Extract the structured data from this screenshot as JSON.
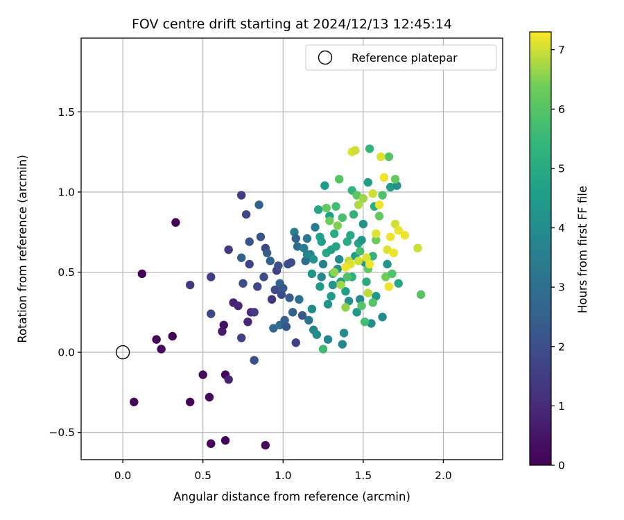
{
  "chart_data": {
    "type": "scatter",
    "title": "FOV centre drift starting at 2024/12/13 12:45:14",
    "xlabel": "Angular distance from reference (arcmin)",
    "ylabel": "Rotation from reference (arcmin)",
    "xlim": [
      -0.26,
      2.37
    ],
    "ylim": [
      -0.67,
      1.96
    ],
    "xticks": [
      0.0,
      0.5,
      1.0,
      1.5,
      2.0
    ],
    "xtick_labels": [
      "0.0",
      "0.5",
      "1.0",
      "1.5",
      "2.0"
    ],
    "yticks": [
      -0.5,
      0.0,
      0.5,
      1.0,
      1.5
    ],
    "ytick_labels": [
      "−0.5",
      "0.0",
      "0.5",
      "1.0",
      "1.5"
    ],
    "grid": true,
    "legend": {
      "placement": "top-right",
      "entries": [
        {
          "label": "Reference platepar",
          "marker": "open-circle",
          "x": 0.0,
          "y": 0.0
        }
      ]
    },
    "colorbar": {
      "label": "Hours from first FF file",
      "colormap": "viridis",
      "range": [
        0,
        7.3
      ],
      "ticks": [
        0,
        1,
        2,
        3,
        4,
        5,
        6,
        7
      ],
      "tick_labels": [
        "0",
        "1",
        "2",
        "3",
        "4",
        "5",
        "6",
        "7"
      ]
    },
    "points": [
      [
        0.12,
        0.49,
        0.05
      ],
      [
        0.33,
        0.81,
        0.05
      ],
      [
        0.21,
        0.08,
        0.1
      ],
      [
        0.31,
        0.1,
        0.1
      ],
      [
        0.24,
        0.02,
        0.15
      ],
      [
        0.07,
        -0.31,
        0.1
      ],
      [
        0.42,
        -0.31,
        0.1
      ],
      [
        0.5,
        -0.14,
        0.2
      ],
      [
        0.54,
        -0.28,
        0.2
      ],
      [
        0.64,
        -0.14,
        0.2
      ],
      [
        0.55,
        -0.57,
        0.1
      ],
      [
        0.64,
        -0.55,
        0.1
      ],
      [
        0.89,
        -0.58,
        0.2
      ],
      [
        0.66,
        -0.17,
        0.8
      ],
      [
        0.62,
        0.13,
        0.6
      ],
      [
        0.63,
        0.17,
        0.4
      ],
      [
        0.69,
        0.31,
        0.8
      ],
      [
        0.72,
        0.29,
        0.9
      ],
      [
        0.78,
        0.19,
        0.9
      ],
      [
        0.8,
        0.25,
        1.0
      ],
      [
        0.42,
        0.42,
        1.3
      ],
      [
        0.55,
        0.47,
        1.6
      ],
      [
        0.55,
        0.24,
        1.8
      ],
      [
        0.66,
        0.64,
        1.4
      ],
      [
        0.74,
        0.98,
        1.5
      ],
      [
        0.77,
        0.86,
        1.8
      ],
      [
        0.79,
        0.69,
        2.2
      ],
      [
        0.79,
        0.55,
        1.7
      ],
      [
        0.74,
        0.59,
        2.5
      ],
      [
        0.75,
        0.43,
        2.0
      ],
      [
        0.74,
        0.09,
        1.6
      ],
      [
        0.82,
        -0.05,
        2.0
      ],
      [
        0.82,
        0.25,
        1.4
      ],
      [
        0.84,
        0.41,
        1.8
      ],
      [
        0.85,
        0.92,
        2.6
      ],
      [
        0.86,
        0.72,
        2.2
      ],
      [
        0.88,
        0.47,
        2.0
      ],
      [
        0.89,
        0.65,
        1.7
      ],
      [
        0.9,
        0.62,
        2.4
      ],
      [
        0.92,
        0.57,
        2.5
      ],
      [
        0.93,
        0.33,
        1.3
      ],
      [
        0.95,
        0.39,
        1.9
      ],
      [
        0.96,
        0.51,
        1.6
      ],
      [
        0.97,
        0.54,
        2.0
      ],
      [
        0.98,
        0.43,
        2.6
      ],
      [
        0.99,
        0.36,
        1.9
      ],
      [
        1.0,
        0.4,
        2.2
      ],
      [
        0.94,
        0.15,
        2.7
      ],
      [
        0.98,
        0.17,
        2.9
      ],
      [
        1.01,
        0.2,
        2.5
      ],
      [
        1.02,
        0.16,
        2.2
      ],
      [
        1.03,
        0.55,
        2.1
      ],
      [
        1.04,
        0.34,
        2.4
      ],
      [
        1.05,
        0.56,
        1.9
      ],
      [
        1.06,
        0.25,
        2.6
      ],
      [
        1.07,
        0.75,
        3.5
      ],
      [
        1.08,
        0.71,
        2.6
      ],
      [
        1.08,
        0.06,
        1.6
      ],
      [
        1.09,
        0.66,
        2.8
      ],
      [
        1.1,
        0.33,
        3.0
      ],
      [
        1.12,
        0.23,
        2.3
      ],
      [
        1.13,
        0.65,
        3.4
      ],
      [
        1.14,
        0.57,
        3.0
      ],
      [
        1.15,
        0.71,
        3.2
      ],
      [
        1.16,
        0.2,
        3.1
      ],
      [
        1.17,
        0.61,
        3.7
      ],
      [
        1.18,
        0.27,
        4.0
      ],
      [
        1.19,
        0.14,
        3.8
      ],
      [
        1.2,
        0.78,
        3.5
      ],
      [
        1.21,
        0.11,
        4.0
      ],
      [
        1.22,
        0.89,
        4.8
      ],
      [
        1.23,
        0.72,
        4.7
      ],
      [
        1.24,
        0.47,
        3.9
      ],
      [
        1.25,
        0.55,
        3.6
      ],
      [
        1.26,
        1.04,
        4.5
      ],
      [
        1.27,
        0.62,
        4.9
      ],
      [
        1.28,
        0.08,
        3.7
      ],
      [
        1.28,
        0.3,
        4.2
      ],
      [
        1.29,
        0.85,
        4.6
      ],
      [
        1.3,
        0.35,
        4.4
      ],
      [
        1.31,
        0.42,
        4.3
      ],
      [
        1.32,
        0.74,
        5.1
      ],
      [
        1.33,
        0.66,
        4.8
      ],
      [
        1.34,
        0.52,
        4.1
      ],
      [
        1.35,
        0.58,
        3.9
      ],
      [
        1.36,
        0.44,
        4.7
      ],
      [
        1.37,
        0.05,
        3.8
      ],
      [
        1.38,
        0.12,
        3.9
      ],
      [
        1.39,
        0.38,
        4.6
      ],
      [
        1.4,
        0.69,
        5.0
      ],
      [
        1.41,
        0.32,
        4.1
      ],
      [
        1.42,
        0.73,
        4.9
      ],
      [
        1.43,
        0.47,
        5.2
      ],
      [
        1.44,
        0.86,
        5.3
      ],
      [
        1.45,
        0.6,
        4.6
      ],
      [
        1.46,
        0.25,
        4.4
      ],
      [
        1.47,
        0.68,
        4.8
      ],
      [
        1.48,
        0.33,
        3.9
      ],
      [
        1.49,
        0.7,
        4.3
      ],
      [
        1.5,
        0.8,
        4.1
      ],
      [
        1.51,
        0.56,
        4.4
      ],
      [
        1.52,
        0.44,
        5.0
      ],
      [
        1.53,
        1.06,
        4.6
      ],
      [
        1.55,
        0.18,
        4.0
      ],
      [
        1.56,
        0.6,
        5.3
      ],
      [
        1.57,
        0.91,
        5.0
      ],
      [
        1.58,
        0.35,
        4.5
      ],
      [
        1.62,
        0.22,
        3.9
      ],
      [
        1.65,
        0.55,
        4.3
      ],
      [
        1.67,
        1.03,
        4.6
      ],
      [
        1.71,
        1.04,
        4.1
      ],
      [
        1.72,
        0.43,
        4.9
      ],
      [
        1.25,
        0.02,
        5.6
      ],
      [
        1.31,
        0.49,
        5.5
      ],
      [
        1.33,
        0.91,
        5.7
      ],
      [
        1.35,
        1.08,
        6.0
      ],
      [
        1.37,
        0.84,
        5.8
      ],
      [
        1.4,
        0.47,
        5.9
      ],
      [
        1.43,
        1.01,
        5.4
      ],
      [
        1.46,
        0.98,
        6.1
      ],
      [
        1.48,
        0.63,
        5.8
      ],
      [
        1.49,
        0.29,
        6.0
      ],
      [
        1.51,
        0.19,
        5.7
      ],
      [
        1.53,
        0.52,
        6.2
      ],
      [
        1.54,
        1.27,
        5.4
      ],
      [
        1.56,
        0.31,
        6.0
      ],
      [
        1.58,
        0.7,
        6.3
      ],
      [
        1.6,
        0.85,
        6.2
      ],
      [
        1.62,
        0.98,
        5.9
      ],
      [
        1.64,
        0.47,
        6.4
      ],
      [
        1.66,
        1.22,
        6.0
      ],
      [
        1.68,
        0.49,
        5.9
      ],
      [
        1.7,
        1.08,
        6.2
      ],
      [
        1.86,
        0.36,
        6.0
      ],
      [
        1.27,
        0.9,
        6.2
      ],
      [
        1.29,
        0.82,
        6.3
      ],
      [
        1.32,
        0.5,
        6.6
      ],
      [
        1.34,
        0.79,
        6.5
      ],
      [
        1.36,
        0.42,
        6.7
      ],
      [
        1.39,
        0.28,
        6.6
      ],
      [
        1.41,
        0.57,
        6.9
      ],
      [
        1.43,
        1.25,
        7.1
      ],
      [
        1.45,
        1.26,
        7.0
      ],
      [
        1.47,
        0.92,
        6.8
      ],
      [
        1.5,
        0.96,
        6.7
      ],
      [
        1.52,
        0.59,
        7.1
      ],
      [
        1.54,
        0.55,
        7.2
      ],
      [
        1.56,
        0.99,
        7.0
      ],
      [
        1.58,
        0.74,
        7.1
      ],
      [
        1.6,
        0.92,
        7.2
      ],
      [
        1.61,
        1.22,
        7.1
      ],
      [
        1.63,
        1.09,
        7.2
      ],
      [
        1.65,
        0.64,
        7.1
      ],
      [
        1.67,
        0.72,
        7.2
      ],
      [
        1.69,
        0.62,
        7.2
      ],
      [
        1.7,
        0.8,
        7.0
      ],
      [
        1.72,
        0.76,
        7.2
      ],
      [
        1.76,
        0.73,
        7.2
      ],
      [
        1.84,
        0.65,
        7.0
      ],
      [
        1.66,
        0.41,
        7.2
      ],
      [
        1.53,
        0.37,
        6.9
      ],
      [
        1.47,
        0.57,
        7.0
      ],
      [
        1.42,
        0.55,
        7.1
      ],
      [
        1.39,
        0.53,
        7.2
      ],
      [
        1.3,
        0.64,
        4.7
      ],
      [
        1.23,
        0.41,
        4.5
      ],
      [
        1.19,
        0.58,
        4.2
      ],
      [
        1.15,
        0.61,
        3.8
      ],
      [
        1.24,
        0.69,
        4.6
      ],
      [
        1.18,
        0.49,
        4.3
      ]
    ]
  }
}
